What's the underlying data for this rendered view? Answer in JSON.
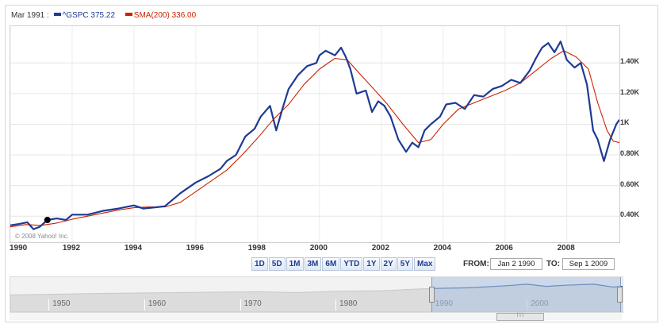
{
  "legend": {
    "date": "Mar 1991 :",
    "series1_name": "^GSPC",
    "series1_value": "375.22",
    "series2_name": "SMA(200)",
    "series2_value": "336.00"
  },
  "copyright": "© 2008 Yahoo! Inc.",
  "range_buttons": [
    "1D",
    "5D",
    "1M",
    "3M",
    "6M",
    "YTD",
    "1Y",
    "2Y",
    "5Y",
    "Max"
  ],
  "from_label": "FROM:",
  "from_value": "Jan 2 1990",
  "to_label": "TO:",
  "to_value": "Sep 1 2009",
  "navigator_years": [
    "1950",
    "1960",
    "1970",
    "1980",
    "1990",
    "2000"
  ],
  "scroll_thumb_label": "⌇⌇⌇",
  "colors": {
    "price": "#1f3a93",
    "sma": "#cc2200"
  },
  "chart_data": {
    "type": "line",
    "xlim": [
      1990,
      2009.7
    ],
    "ylim": [
      230,
      1640
    ],
    "x_ticks": [
      "1990",
      "1992",
      "1994",
      "1996",
      "1998",
      "2000",
      "2002",
      "2004",
      "2006",
      "2008"
    ],
    "y_ticks": [
      {
        "value": 400,
        "label": "0.40K"
      },
      {
        "value": 600,
        "label": "0.60K"
      },
      {
        "value": 800,
        "label": "0.80K"
      },
      {
        "value": 1000,
        "label": "1K"
      },
      {
        "value": 1200,
        "label": "1.20K"
      },
      {
        "value": 1400,
        "label": "1.40K"
      }
    ],
    "marker": {
      "x": 1991.2,
      "y": 375.22
    },
    "series": [
      {
        "name": "^GSPC",
        "points": [
          [
            1990.0,
            340
          ],
          [
            1990.3,
            350
          ],
          [
            1990.55,
            360
          ],
          [
            1990.75,
            315
          ],
          [
            1990.95,
            330
          ],
          [
            1991.2,
            375
          ],
          [
            1991.5,
            385
          ],
          [
            1991.8,
            375
          ],
          [
            1992.0,
            410
          ],
          [
            1992.5,
            410
          ],
          [
            1993.0,
            435
          ],
          [
            1993.5,
            450
          ],
          [
            1994.0,
            470
          ],
          [
            1994.3,
            450
          ],
          [
            1994.8,
            460
          ],
          [
            1995.0,
            465
          ],
          [
            1995.5,
            550
          ],
          [
            1996.0,
            620
          ],
          [
            1996.4,
            660
          ],
          [
            1996.8,
            710
          ],
          [
            1997.0,
            760
          ],
          [
            1997.3,
            800
          ],
          [
            1997.6,
            920
          ],
          [
            1997.9,
            970
          ],
          [
            1998.1,
            1050
          ],
          [
            1998.4,
            1120
          ],
          [
            1998.6,
            960
          ],
          [
            1998.8,
            1100
          ],
          [
            1999.0,
            1230
          ],
          [
            1999.3,
            1320
          ],
          [
            1999.6,
            1380
          ],
          [
            1999.9,
            1400
          ],
          [
            2000.0,
            1450
          ],
          [
            2000.2,
            1480
          ],
          [
            2000.5,
            1450
          ],
          [
            2000.7,
            1500
          ],
          [
            2000.85,
            1440
          ],
          [
            2001.0,
            1360
          ],
          [
            2001.2,
            1200
          ],
          [
            2001.5,
            1220
          ],
          [
            2001.7,
            1080
          ],
          [
            2001.9,
            1150
          ],
          [
            2002.1,
            1120
          ],
          [
            2002.3,
            1050
          ],
          [
            2002.55,
            900
          ],
          [
            2002.8,
            820
          ],
          [
            2003.0,
            880
          ],
          [
            2003.2,
            850
          ],
          [
            2003.4,
            960
          ],
          [
            2003.6,
            1000
          ],
          [
            2003.9,
            1050
          ],
          [
            2004.1,
            1130
          ],
          [
            2004.4,
            1140
          ],
          [
            2004.7,
            1100
          ],
          [
            2005.0,
            1190
          ],
          [
            2005.3,
            1180
          ],
          [
            2005.6,
            1230
          ],
          [
            2005.9,
            1250
          ],
          [
            2006.2,
            1290
          ],
          [
            2006.5,
            1270
          ],
          [
            2006.8,
            1350
          ],
          [
            2007.0,
            1430
          ],
          [
            2007.2,
            1500
          ],
          [
            2007.4,
            1530
          ],
          [
            2007.6,
            1470
          ],
          [
            2007.8,
            1540
          ],
          [
            2008.0,
            1420
          ],
          [
            2008.25,
            1370
          ],
          [
            2008.45,
            1400
          ],
          [
            2008.65,
            1260
          ],
          [
            2008.85,
            960
          ],
          [
            2009.0,
            900
          ],
          [
            2009.2,
            760
          ],
          [
            2009.4,
            900
          ],
          [
            2009.6,
            1000
          ],
          [
            2009.7,
            1030
          ]
        ]
      },
      {
        "name": "SMA(200)",
        "points": [
          [
            1990.0,
            330
          ],
          [
            1990.5,
            345
          ],
          [
            1991.0,
            340
          ],
          [
            1991.5,
            355
          ],
          [
            1992.0,
            380
          ],
          [
            1992.5,
            400
          ],
          [
            1993.0,
            420
          ],
          [
            1993.5,
            440
          ],
          [
            1994.0,
            455
          ],
          [
            1994.5,
            460
          ],
          [
            1995.0,
            460
          ],
          [
            1995.5,
            490
          ],
          [
            1996.0,
            560
          ],
          [
            1996.5,
            630
          ],
          [
            1997.0,
            700
          ],
          [
            1997.5,
            800
          ],
          [
            1998.0,
            910
          ],
          [
            1998.5,
            1030
          ],
          [
            1999.0,
            1130
          ],
          [
            1999.5,
            1260
          ],
          [
            2000.0,
            1360
          ],
          [
            2000.5,
            1430
          ],
          [
            2000.9,
            1420
          ],
          [
            2001.3,
            1330
          ],
          [
            2001.8,
            1220
          ],
          [
            2002.2,
            1130
          ],
          [
            2002.7,
            1000
          ],
          [
            2003.2,
            880
          ],
          [
            2003.6,
            900
          ],
          [
            2004.0,
            1000
          ],
          [
            2004.5,
            1100
          ],
          [
            2005.0,
            1140
          ],
          [
            2005.5,
            1180
          ],
          [
            2006.0,
            1220
          ],
          [
            2006.5,
            1270
          ],
          [
            2007.0,
            1350
          ],
          [
            2007.5,
            1430
          ],
          [
            2007.9,
            1480
          ],
          [
            2008.3,
            1440
          ],
          [
            2008.7,
            1360
          ],
          [
            2009.0,
            1140
          ],
          [
            2009.3,
            960
          ],
          [
            2009.5,
            890
          ],
          [
            2009.7,
            880
          ]
        ]
      }
    ]
  },
  "navigator_data": {
    "xlim": [
      1946,
      2010
    ],
    "selection": [
      1990,
      2009.7
    ],
    "points": [
      [
        1946,
        0.2
      ],
      [
        1955,
        0.3
      ],
      [
        1965,
        0.38
      ],
      [
        1972,
        0.42
      ],
      [
        1976,
        0.36
      ],
      [
        1980,
        0.46
      ],
      [
        1985,
        0.5
      ],
      [
        1988,
        0.6
      ],
      [
        1990,
        0.65
      ],
      [
        1994,
        0.7
      ],
      [
        1998,
        0.85
      ],
      [
        2000,
        0.95
      ],
      [
        2002,
        0.8
      ],
      [
        2004,
        0.88
      ],
      [
        2007,
        0.95
      ],
      [
        2009,
        0.75
      ],
      [
        2010,
        0.8
      ]
    ]
  }
}
